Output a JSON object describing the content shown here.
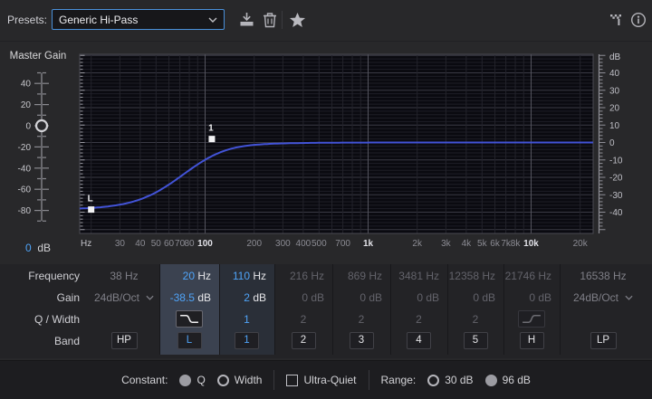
{
  "topbar": {
    "presets_label": "Presets:",
    "preset_value": "Generic Hi-Pass"
  },
  "master_gain": {
    "label": "Master Gain",
    "value_number": "0",
    "value_unit": "dB",
    "knob_db": 0,
    "labeled_ticks": [
      "40",
      "20",
      "0",
      "-20",
      "-40",
      "-60",
      "-80"
    ]
  },
  "chart_data": {
    "type": "line",
    "title": "Parametric EQ frequency response",
    "x_axis": {
      "unit_label": "Hz",
      "scale": "log",
      "tick_labels": [
        "30",
        "40",
        "50",
        "60",
        "70",
        "80",
        "100",
        "200",
        "300",
        "400",
        "500",
        "700",
        "1k",
        "2k",
        "3k",
        "4k",
        "5k",
        "6k",
        "7k",
        "8k",
        "10k",
        "20k"
      ],
      "tick_values": [
        30,
        40,
        50,
        60,
        70,
        80,
        100,
        200,
        300,
        400,
        500,
        700,
        1000,
        2000,
        3000,
        4000,
        5000,
        6000,
        7000,
        8000,
        10000,
        20000
      ],
      "major_values": [
        100,
        1000,
        10000
      ],
      "range_hz": [
        17,
        24000
      ]
    },
    "y_axis": {
      "unit_label": "dB",
      "tick_values": [
        40,
        30,
        20,
        10,
        0,
        -10,
        -20,
        -30,
        -40
      ],
      "minor_step": 2,
      "major_step": 10,
      "range_db": [
        -52,
        50
      ]
    },
    "curve": {
      "color": "#4253d7",
      "low_shelf": {
        "freq": 75,
        "gain_db": -38.5,
        "slope": 2.8
      },
      "bell": {
        "freq": 110,
        "gain_db": 2,
        "width_decades": 0.3
      }
    },
    "handles": [
      {
        "label": "L",
        "freq": 20,
        "gain_db": -38.5
      },
      {
        "label": "1",
        "freq": 110,
        "gain_db": 2
      }
    ]
  },
  "eq_table": {
    "row_labels": [
      "Frequency",
      "Gain",
      "Q / Width",
      "Band"
    ],
    "columns": [
      {
        "band": "HP",
        "freq": "38 Hz",
        "gain": "24dB/Oct",
        "gain_dropdown": true,
        "q": "",
        "q_icon": "",
        "state": "hp"
      },
      {
        "band": "L",
        "freq": "20 Hz",
        "gain": "-38.5 dB",
        "gain_dropdown": false,
        "q": "",
        "q_icon": "lowpass",
        "state": "selected"
      },
      {
        "band": "1",
        "freq": "110 Hz",
        "gain": "2 dB",
        "gain_dropdown": false,
        "q": "1",
        "q_icon": "",
        "state": "active"
      },
      {
        "band": "2",
        "freq": "216 Hz",
        "gain": "0 dB",
        "gain_dropdown": false,
        "q": "2",
        "q_icon": "",
        "state": "dim"
      },
      {
        "band": "3",
        "freq": "869 Hz",
        "gain": "0 dB",
        "gain_dropdown": false,
        "q": "2",
        "q_icon": "",
        "state": "dim"
      },
      {
        "band": "4",
        "freq": "3481 Hz",
        "gain": "0 dB",
        "gain_dropdown": false,
        "q": "2",
        "q_icon": "",
        "state": "dim"
      },
      {
        "band": "5",
        "freq": "12358 Hz",
        "gain": "0 dB",
        "gain_dropdown": false,
        "q": "2",
        "q_icon": "",
        "state": "dim"
      },
      {
        "band": "H",
        "freq": "21746 Hz",
        "gain": "0 dB",
        "gain_dropdown": false,
        "q": "",
        "q_icon": "highshelf",
        "state": "dim"
      },
      {
        "band": "LP",
        "freq": "16538 Hz",
        "gain": "24dB/Oct",
        "gain_dropdown": true,
        "q": "",
        "q_icon": "",
        "state": "hp"
      }
    ]
  },
  "footer": {
    "constant_label": "Constant:",
    "constant_options": [
      {
        "label": "Q",
        "selected": true
      },
      {
        "label": "Width",
        "selected": false
      }
    ],
    "ultra_quiet_label": "Ultra-Quiet",
    "ultra_quiet_checked": false,
    "range_label": "Range:",
    "range_options": [
      {
        "label": "30 dB",
        "selected": false
      },
      {
        "label": "96 dB",
        "selected": true
      }
    ]
  },
  "colors": {
    "accent": "#4fa3f7",
    "curve": "#4253d7",
    "plot_bg": "#0a0a10"
  }
}
